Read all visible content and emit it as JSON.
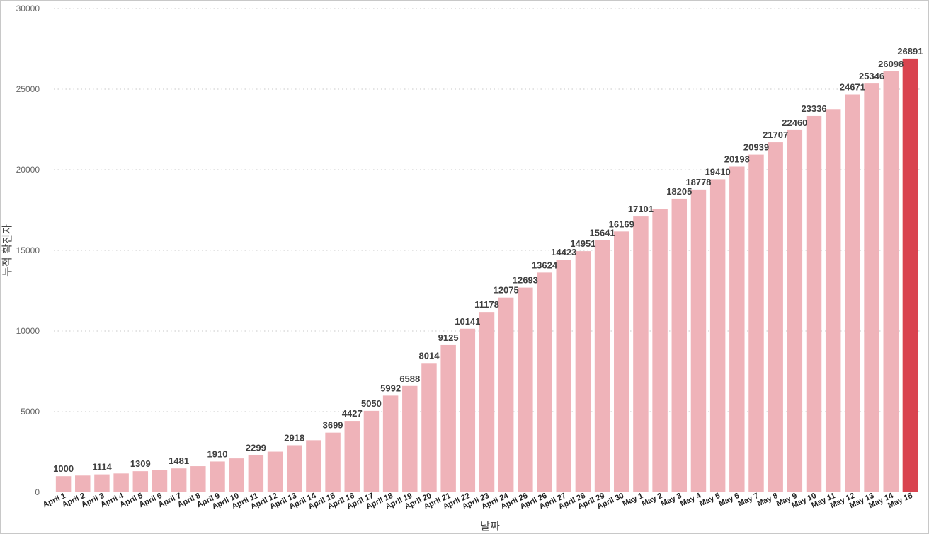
{
  "chart_data": {
    "type": "bar",
    "title": "",
    "xlabel": "날짜",
    "ylabel": "누적 확진자",
    "ylim": [
      0,
      30000
    ],
    "y_ticks": [
      0,
      5000,
      10000,
      15000,
      20000,
      25000,
      30000
    ],
    "grid": true,
    "colors": {
      "bar": "#efb3b9",
      "highlight": "#d9434f"
    },
    "highlight_index": 44,
    "categories": [
      "April 1",
      "April 2",
      "April 3",
      "April 4",
      "April 5",
      "April 6",
      "April 7",
      "April 8",
      "April 9",
      "April 10",
      "April 11",
      "April 12",
      "April 13",
      "April 14",
      "April 15",
      "April 16",
      "April 17",
      "April 18",
      "April 19",
      "April 20",
      "April 21",
      "April 22",
      "April 23",
      "April 24",
      "April 25",
      "April 26",
      "April 27",
      "April 28",
      "April 29",
      "April 30",
      "May 1",
      "May 2",
      "May 3",
      "May 4",
      "May 5",
      "May 6",
      "May 7",
      "May 8",
      "May 9",
      "May 10",
      "May 11",
      "May 12",
      "May 13",
      "May 14",
      "May 15"
    ],
    "values": [
      1000,
      1040,
      1114,
      1170,
      1309,
      1380,
      1481,
      1620,
      1910,
      2100,
      2299,
      2520,
      2918,
      3230,
      3699,
      4427,
      5050,
      5992,
      6588,
      8014,
      9125,
      10141,
      11178,
      12075,
      12693,
      13624,
      14423,
      14951,
      15641,
      16169,
      17101,
      17560,
      18205,
      18778,
      19410,
      20198,
      20939,
      21707,
      22460,
      23336,
      23760,
      24671,
      25346,
      26098,
      26891
    ],
    "data_labels": [
      "1000",
      "",
      "1114",
      "",
      "1309",
      "",
      "1481",
      "",
      "1910",
      "",
      "2299",
      "",
      "2918",
      "",
      "3699",
      "4427",
      "5050",
      "5992",
      "6588",
      "8014",
      "9125",
      "10141",
      "11178",
      "12075",
      "12693",
      "13624",
      "14423",
      "14951",
      "15641",
      "16169",
      "17101",
      "",
      "18205",
      "18778",
      "19410",
      "20198",
      "20939",
      "21707",
      "22460",
      "23336",
      "",
      "24671",
      "25346",
      "26098",
      "26891"
    ]
  }
}
